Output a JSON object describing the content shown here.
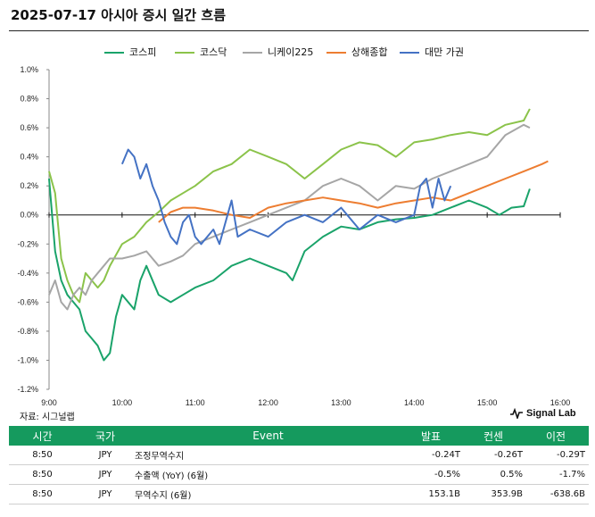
{
  "title": "2025-07-17 아시아 증시 일간 흐름",
  "source": "자료: 시그널랩",
  "brand": "Signal Lab",
  "chart_data": {
    "type": "line",
    "title": "2025-07-17 아시아 증시 일간 흐름",
    "x_ticks": [
      "9:00",
      "10:00",
      "11:00",
      "12:00",
      "13:00",
      "14:00",
      "15:00",
      "16:00"
    ],
    "xlim": [
      "9:00",
      "16:00"
    ],
    "y_ticks": [
      "1.0%",
      "0.8%",
      "0.6%",
      "0.4%",
      "0.2%",
      "0.0%",
      "-0.2%",
      "-0.4%",
      "-0.6%",
      "-0.8%",
      "-1.0%",
      "-1.2%"
    ],
    "ylim": [
      -1.2,
      1.0
    ],
    "y_unit": "%",
    "grid": false,
    "legend_position": "top",
    "series": [
      {
        "name": "코스피",
        "color": "#1aa36a",
        "points": [
          [
            "9:00",
            0.25
          ],
          [
            "9:05",
            -0.25
          ],
          [
            "9:10",
            -0.45
          ],
          [
            "9:15",
            -0.55
          ],
          [
            "9:20",
            -0.6
          ],
          [
            "9:25",
            -0.65
          ],
          [
            "9:30",
            -0.8
          ],
          [
            "9:35",
            -0.85
          ],
          [
            "9:40",
            -0.9
          ],
          [
            "9:45",
            -1.0
          ],
          [
            "9:50",
            -0.95
          ],
          [
            "9:55",
            -0.7
          ],
          [
            "10:00",
            -0.55
          ],
          [
            "10:10",
            -0.65
          ],
          [
            "10:15",
            -0.45
          ],
          [
            "10:20",
            -0.35
          ],
          [
            "10:30",
            -0.55
          ],
          [
            "10:40",
            -0.6
          ],
          [
            "10:50",
            -0.55
          ],
          [
            "11:00",
            -0.5
          ],
          [
            "11:15",
            -0.45
          ],
          [
            "11:30",
            -0.35
          ],
          [
            "11:45",
            -0.3
          ],
          [
            "12:00",
            -0.35
          ],
          [
            "12:15",
            -0.4
          ],
          [
            "12:20",
            -0.45
          ],
          [
            "12:30",
            -0.25
          ],
          [
            "12:45",
            -0.15
          ],
          [
            "13:00",
            -0.08
          ],
          [
            "13:15",
            -0.1
          ],
          [
            "13:30",
            -0.05
          ],
          [
            "13:45",
            -0.03
          ],
          [
            "14:00",
            -0.02
          ],
          [
            "14:15",
            0.0
          ],
          [
            "14:30",
            0.05
          ],
          [
            "14:45",
            0.1
          ],
          [
            "15:00",
            0.05
          ],
          [
            "15:10",
            0.0
          ],
          [
            "15:20",
            0.05
          ],
          [
            "15:30",
            0.06
          ],
          [
            "15:35",
            0.18
          ]
        ]
      },
      {
        "name": "코스닥",
        "color": "#8bc34a",
        "points": [
          [
            "9:00",
            0.3
          ],
          [
            "9:05",
            0.15
          ],
          [
            "9:10",
            -0.3
          ],
          [
            "9:15",
            -0.45
          ],
          [
            "9:20",
            -0.55
          ],
          [
            "9:25",
            -0.6
          ],
          [
            "9:30",
            -0.4
          ],
          [
            "9:35",
            -0.45
          ],
          [
            "9:40",
            -0.5
          ],
          [
            "9:45",
            -0.45
          ],
          [
            "9:50",
            -0.35
          ],
          [
            "10:00",
            -0.2
          ],
          [
            "10:10",
            -0.15
          ],
          [
            "10:20",
            -0.05
          ],
          [
            "10:30",
            0.02
          ],
          [
            "10:40",
            0.1
          ],
          [
            "10:50",
            0.15
          ],
          [
            "11:00",
            0.2
          ],
          [
            "11:15",
            0.3
          ],
          [
            "11:30",
            0.35
          ],
          [
            "11:45",
            0.45
          ],
          [
            "12:00",
            0.4
          ],
          [
            "12:15",
            0.35
          ],
          [
            "12:30",
            0.25
          ],
          [
            "12:45",
            0.35
          ],
          [
            "13:00",
            0.45
          ],
          [
            "13:15",
            0.5
          ],
          [
            "13:30",
            0.48
          ],
          [
            "13:45",
            0.4
          ],
          [
            "14:00",
            0.5
          ],
          [
            "14:15",
            0.52
          ],
          [
            "14:30",
            0.55
          ],
          [
            "14:45",
            0.57
          ],
          [
            "15:00",
            0.55
          ],
          [
            "15:15",
            0.62
          ],
          [
            "15:30",
            0.65
          ],
          [
            "15:35",
            0.73
          ]
        ]
      },
      {
        "name": "니케이225",
        "color": "#a6a6a6",
        "points": [
          [
            "9:00",
            -0.55
          ],
          [
            "9:05",
            -0.45
          ],
          [
            "9:10",
            -0.6
          ],
          [
            "9:15",
            -0.65
          ],
          [
            "9:20",
            -0.55
          ],
          [
            "9:25",
            -0.5
          ],
          [
            "9:30",
            -0.55
          ],
          [
            "9:35",
            -0.45
          ],
          [
            "9:40",
            -0.4
          ],
          [
            "9:45",
            -0.35
          ],
          [
            "9:50",
            -0.3
          ],
          [
            "10:00",
            -0.3
          ],
          [
            "10:10",
            -0.28
          ],
          [
            "10:20",
            -0.25
          ],
          [
            "10:30",
            -0.35
          ],
          [
            "10:40",
            -0.32
          ],
          [
            "10:50",
            -0.28
          ],
          [
            "11:00",
            -0.2
          ],
          [
            "11:15",
            -0.15
          ],
          [
            "11:30",
            -0.1
          ],
          [
            "11:45",
            -0.05
          ],
          [
            "12:00",
            0.0
          ],
          [
            "12:15",
            0.05
          ],
          [
            "12:30",
            0.1
          ],
          [
            "12:45",
            0.2
          ],
          [
            "13:00",
            0.25
          ],
          [
            "13:15",
            0.2
          ],
          [
            "13:30",
            0.1
          ],
          [
            "13:45",
            0.2
          ],
          [
            "14:00",
            0.18
          ],
          [
            "14:15",
            0.25
          ],
          [
            "14:30",
            0.3
          ],
          [
            "14:45",
            0.35
          ],
          [
            "15:00",
            0.4
          ],
          [
            "15:15",
            0.55
          ],
          [
            "15:30",
            0.62
          ],
          [
            "15:35",
            0.6
          ]
        ]
      },
      {
        "name": "상해종합",
        "color": "#ed7d31",
        "points": [
          [
            "10:30",
            -0.05
          ],
          [
            "10:40",
            0.02
          ],
          [
            "10:50",
            0.05
          ],
          [
            "11:00",
            0.05
          ],
          [
            "11:15",
            0.03
          ],
          [
            "11:30",
            0.0
          ],
          [
            "11:45",
            -0.02
          ],
          [
            "12:00",
            0.05
          ],
          [
            "12:15",
            0.08
          ],
          [
            "12:30",
            0.1
          ],
          [
            "12:45",
            0.12
          ],
          [
            "13:00",
            0.1
          ],
          [
            "13:15",
            0.08
          ],
          [
            "13:30",
            0.05
          ],
          [
            "13:45",
            0.08
          ],
          [
            "14:00",
            0.1
          ],
          [
            "14:15",
            0.12
          ],
          [
            "14:30",
            0.1
          ],
          [
            "14:45",
            0.15
          ],
          [
            "15:00",
            0.2
          ],
          [
            "15:15",
            0.25
          ],
          [
            "15:30",
            0.3
          ],
          [
            "15:45",
            0.35
          ],
          [
            "15:50",
            0.37
          ]
        ]
      },
      {
        "name": "대만 가권",
        "color": "#4472c4",
        "points": [
          [
            "10:00",
            0.35
          ],
          [
            "10:05",
            0.45
          ],
          [
            "10:10",
            0.4
          ],
          [
            "10:15",
            0.25
          ],
          [
            "10:20",
            0.35
          ],
          [
            "10:25",
            0.2
          ],
          [
            "10:30",
            0.1
          ],
          [
            "10:35",
            -0.05
          ],
          [
            "10:40",
            -0.15
          ],
          [
            "10:45",
            -0.2
          ],
          [
            "10:50",
            -0.05
          ],
          [
            "10:55",
            0.0
          ],
          [
            "11:00",
            -0.15
          ],
          [
            "11:05",
            -0.2
          ],
          [
            "11:15",
            -0.1
          ],
          [
            "11:20",
            -0.2
          ],
          [
            "11:30",
            0.1
          ],
          [
            "11:35",
            -0.15
          ],
          [
            "11:45",
            -0.1
          ],
          [
            "12:00",
            -0.15
          ],
          [
            "12:15",
            -0.05
          ],
          [
            "12:30",
            0.0
          ],
          [
            "12:45",
            -0.05
          ],
          [
            "13:00",
            0.05
          ],
          [
            "13:15",
            -0.1
          ],
          [
            "13:30",
            0.0
          ],
          [
            "13:45",
            -0.05
          ],
          [
            "14:00",
            0.0
          ],
          [
            "14:05",
            0.2
          ],
          [
            "14:10",
            0.25
          ],
          [
            "14:15",
            0.05
          ],
          [
            "14:20",
            0.25
          ],
          [
            "14:25",
            0.1
          ],
          [
            "14:30",
            0.2
          ]
        ]
      }
    ]
  },
  "table": {
    "headers": [
      "시간",
      "국가",
      "Event",
      "발표",
      "컨센",
      "이전"
    ],
    "rows": [
      [
        "8:50",
        "JPY",
        "조정무역수지",
        "-0.24T",
        "-0.26T",
        "-0.29T"
      ],
      [
        "8:50",
        "JPY",
        "수출액 (YoY) (6월)",
        "-0.5%",
        "0.5%",
        "-1.7%"
      ],
      [
        "8:50",
        "JPY",
        "무역수지 (6월)",
        "153.1B",
        "353.9B",
        "-638.6B"
      ]
    ]
  }
}
